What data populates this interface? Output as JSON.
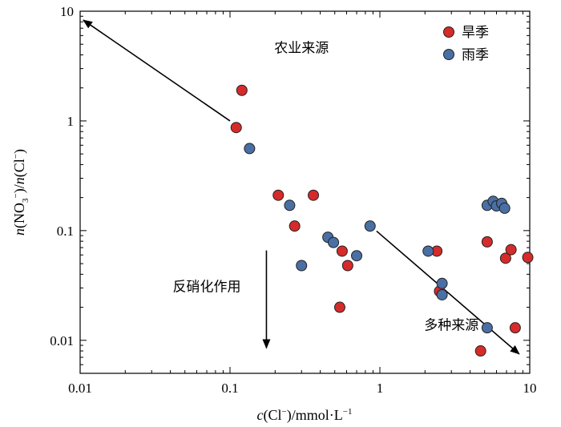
{
  "chart_data": {
    "type": "scatter",
    "xlabel": "c(Cl⁻)/mmol·L⁻¹",
    "ylabel": "n(NO₃⁻)/n(Cl⁻)",
    "xscale": "log",
    "yscale": "log",
    "xlim": [
      0.01,
      10
    ],
    "ylim": [
      0.005,
      10
    ],
    "xticks": [
      {
        "value": 0.01,
        "label": "0.01"
      },
      {
        "value": 0.1,
        "label": "0.1"
      },
      {
        "value": 1,
        "label": "1"
      },
      {
        "value": 10,
        "label": "10"
      }
    ],
    "yticks": [
      {
        "value": 0.01,
        "label": "0.01"
      },
      {
        "value": 0.1,
        "label": "0.1"
      },
      {
        "value": 1,
        "label": "1"
      },
      {
        "value": 10,
        "label": "10"
      }
    ],
    "legend_position": "top-right",
    "series": [
      {
        "name": "旱季",
        "color": "#d62b2b",
        "points": [
          {
            "x": 0.11,
            "y": 0.87
          },
          {
            "x": 0.12,
            "y": 1.9
          },
          {
            "x": 0.21,
            "y": 0.21
          },
          {
            "x": 0.27,
            "y": 0.11
          },
          {
            "x": 0.36,
            "y": 0.21
          },
          {
            "x": 0.54,
            "y": 0.02
          },
          {
            "x": 0.56,
            "y": 0.065
          },
          {
            "x": 0.61,
            "y": 0.048
          },
          {
            "x": 2.4,
            "y": 0.065
          },
          {
            "x": 2.5,
            "y": 0.028
          },
          {
            "x": 4.7,
            "y": 0.008
          },
          {
            "x": 5.2,
            "y": 0.079
          },
          {
            "x": 6.9,
            "y": 0.056
          },
          {
            "x": 7.5,
            "y": 0.067
          },
          {
            "x": 8.0,
            "y": 0.013
          },
          {
            "x": 9.7,
            "y": 0.057
          }
        ]
      },
      {
        "name": "雨季",
        "color": "#4a6fa5",
        "points": [
          {
            "x": 0.135,
            "y": 0.56
          },
          {
            "x": 0.25,
            "y": 0.17
          },
          {
            "x": 0.3,
            "y": 0.048
          },
          {
            "x": 0.45,
            "y": 0.087
          },
          {
            "x": 0.49,
            "y": 0.078
          },
          {
            "x": 0.7,
            "y": 0.059
          },
          {
            "x": 0.86,
            "y": 0.11
          },
          {
            "x": 2.1,
            "y": 0.065
          },
          {
            "x": 2.6,
            "y": 0.033
          },
          {
            "x": 2.6,
            "y": 0.026
          },
          {
            "x": 5.2,
            "y": 0.17
          },
          {
            "x": 5.7,
            "y": 0.185
          },
          {
            "x": 6.0,
            "y": 0.168
          },
          {
            "x": 6.5,
            "y": 0.177
          },
          {
            "x": 6.8,
            "y": 0.16
          },
          {
            "x": 5.2,
            "y": 0.013
          }
        ]
      }
    ],
    "annotations": [
      {
        "text": "农业来源",
        "arrow_from": [
          0.1,
          1.0
        ],
        "arrow_to": [
          0.0105,
          8.3
        ],
        "label_at": [
          0.3,
          4.2
        ]
      },
      {
        "text": "反硝化作用",
        "arrow_from": [
          0.175,
          0.066
        ],
        "arrow_to": [
          0.175,
          0.0085
        ],
        "label_at": [
          0.07,
          0.028
        ]
      },
      {
        "text": "多种来源",
        "arrow_from": [
          0.95,
          0.099
        ],
        "arrow_to": [
          8.5,
          0.0075
        ],
        "label_at": [
          3.0,
          0.0125
        ]
      }
    ]
  }
}
